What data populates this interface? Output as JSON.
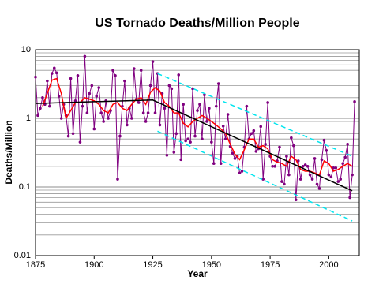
{
  "chart_data": {
    "type": "line",
    "title": "US Tornado Deaths/Million People",
    "x_label": "Year",
    "y_label": "Deaths/Million",
    "log_y": true,
    "xlim": [
      1875,
      2013
    ],
    "xticks": [
      1875,
      1900,
      1925,
      1950,
      1975,
      2000
    ],
    "ylim": [
      0.01,
      10
    ],
    "yticks": [
      0.01,
      0.1,
      1,
      10
    ],
    "minor_yticks": [
      0.02,
      0.03,
      0.04,
      0.05,
      0.06,
      0.07,
      0.08,
      0.09,
      0.2,
      0.3,
      0.4,
      0.5,
      0.6,
      0.7,
      0.8,
      0.9,
      2,
      3,
      4,
      5,
      6,
      7,
      8,
      9
    ],
    "grid": true,
    "series": [
      {
        "color": "#800080",
        "marker": true,
        "dashed": false,
        "x": [
          1875,
          1876,
          1877,
          1878,
          1879,
          1880,
          1881,
          1882,
          1883,
          1884,
          1885,
          1886,
          1887,
          1888,
          1889,
          1890,
          1891,
          1892,
          1893,
          1894,
          1895,
          1896,
          1897,
          1898,
          1899,
          1900,
          1901,
          1902,
          1903,
          1904,
          1905,
          1906,
          1907,
          1908,
          1909,
          1910,
          1911,
          1912,
          1913,
          1914,
          1915,
          1916,
          1917,
          1918,
          1919,
          1920,
          1921,
          1922,
          1923,
          1924,
          1925,
          1926,
          1927,
          1928,
          1929,
          1930,
          1931,
          1932,
          1933,
          1934,
          1935,
          1936,
          1937,
          1938,
          1939,
          1940,
          1941,
          1942,
          1943,
          1944,
          1945,
          1946,
          1947,
          1948,
          1949,
          1950,
          1951,
          1952,
          1953,
          1954,
          1955,
          1956,
          1957,
          1958,
          1959,
          1960,
          1961,
          1962,
          1963,
          1964,
          1965,
          1966,
          1967,
          1968,
          1969,
          1970,
          1971,
          1972,
          1973,
          1974,
          1975,
          1976,
          1977,
          1978,
          1979,
          1980,
          1981,
          1982,
          1983,
          1984,
          1985,
          1986,
          1987,
          1988,
          1989,
          1990,
          1991,
          1992,
          1993,
          1994,
          1995,
          1996,
          1997,
          1998,
          1999,
          2000,
          2001,
          2002,
          2003,
          2004,
          2005,
          2006,
          2007,
          2008,
          2009,
          2010,
          2011
        ],
        "values": [
          4.0,
          1.1,
          1.4,
          2.0,
          1.6,
          3.5,
          1.5,
          4.5,
          5.4,
          4.6,
          2.1,
          1.0,
          1.6,
          1.1,
          0.55,
          3.8,
          0.6,
          1.8,
          4.2,
          0.45,
          1.5,
          8.0,
          1.2,
          2.3,
          3.0,
          0.7,
          2.1,
          2.8,
          1.2,
          0.9,
          1.8,
          1.0,
          1.3,
          5.0,
          4.2,
          0.13,
          0.55,
          1.5,
          3.5,
          0.8,
          1.4,
          1.0,
          5.3,
          1.9,
          1.7,
          5.0,
          1.2,
          0.9,
          1.2,
          3.0,
          6.7,
          1.2,
          4.5,
          0.8,
          2.3,
          1.4,
          0.29,
          3.0,
          2.7,
          0.32,
          0.6,
          4.3,
          0.25,
          1.6,
          0.47,
          0.5,
          0.45,
          2.7,
          0.55,
          1.3,
          1.6,
          0.5,
          2.2,
          0.9,
          1.4,
          0.45,
          0.22,
          1.5,
          3.2,
          0.22,
          0.77,
          0.5,
          1.14,
          0.39,
          0.31,
          0.26,
          0.28,
          0.16,
          0.17,
          0.38,
          1.5,
          0.5,
          0.6,
          0.66,
          0.33,
          0.36,
          0.76,
          0.13,
          0.42,
          1.7,
          0.28,
          0.2,
          0.2,
          0.24,
          0.38,
          0.12,
          0.11,
          0.28,
          0.15,
          0.52,
          0.4,
          0.065,
          0.24,
          0.13,
          0.2,
          0.21,
          0.2,
          0.15,
          0.13,
          0.26,
          0.11,
          0.095,
          0.25,
          0.48,
          0.34,
          0.15,
          0.14,
          0.19,
          0.19,
          0.12,
          0.13,
          0.22,
          0.27,
          0.42,
          0.07,
          0.15,
          1.75
        ]
      },
      {
        "color": "#ff0000",
        "marker": false,
        "dashed": false,
        "x": [
          1878,
          1880,
          1882,
          1884,
          1886,
          1888,
          1890,
          1892,
          1894,
          1896,
          1898,
          1900,
          1902,
          1904,
          1906,
          1908,
          1910,
          1912,
          1914,
          1916,
          1918,
          1920,
          1922,
          1924,
          1926,
          1928,
          1930,
          1932,
          1934,
          1936,
          1938,
          1940,
          1942,
          1944,
          1946,
          1948,
          1950,
          1952,
          1954,
          1956,
          1958,
          1960,
          1962,
          1964,
          1966,
          1968,
          1970,
          1972,
          1974,
          1976,
          1978,
          1980,
          1982,
          1984,
          1986,
          1988,
          1990,
          1992,
          1994,
          1996,
          1998,
          2000,
          2002,
          2004,
          2006,
          2008,
          2010
        ],
        "values": [
          1.5,
          2.3,
          3.6,
          3.8,
          2.3,
          1.0,
          1.3,
          1.7,
          1.7,
          2.0,
          1.9,
          1.8,
          1.6,
          1.3,
          1.2,
          1.6,
          1.7,
          1.4,
          1.3,
          1.6,
          1.9,
          2.0,
          1.6,
          2.4,
          2.8,
          2.5,
          1.7,
          1.5,
          1.2,
          1.2,
          0.85,
          0.75,
          0.9,
          1.0,
          1.1,
          1.0,
          0.9,
          0.8,
          0.7,
          0.6,
          0.42,
          0.3,
          0.25,
          0.35,
          0.5,
          0.5,
          0.38,
          0.4,
          0.36,
          0.25,
          0.23,
          0.22,
          0.2,
          0.28,
          0.25,
          0.18,
          0.17,
          0.17,
          0.16,
          0.15,
          0.24,
          0.22,
          0.17,
          0.18,
          0.2,
          0.22,
          0.2
        ]
      },
      {
        "color": "#000000",
        "marker": false,
        "dashed": false,
        "x": [
          1875,
          1925,
          2010
        ],
        "values": [
          1.65,
          1.85,
          0.088
        ]
      },
      {
        "color": "#00e5ee",
        "marker": false,
        "dashed": true,
        "x": [
          1927,
          2010
        ],
        "values": [
          4.5,
          0.28
        ]
      },
      {
        "color": "#00e5ee",
        "marker": false,
        "dashed": true,
        "x": [
          1927,
          2010
        ],
        "values": [
          0.65,
          0.032
        ]
      }
    ]
  }
}
